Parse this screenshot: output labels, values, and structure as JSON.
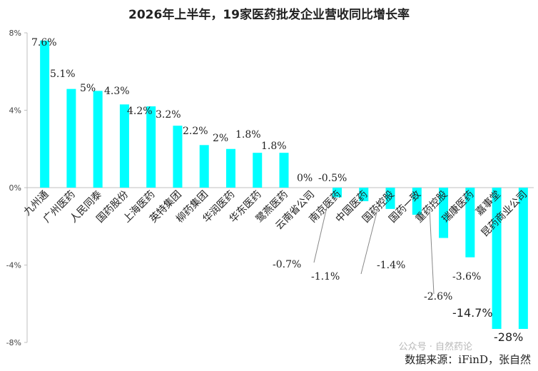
{
  "chart_data": {
    "type": "bar",
    "title": "2026年上半年，19家医药批发企业营收同比增长率",
    "categories": [
      "九州通",
      "广州医药",
      "人民同泰",
      "国药股份",
      "上海医药",
      "英特集团",
      "柳药集团",
      "华润医药",
      "华东医药",
      "鹭燕医药",
      "云南省公司",
      "南京医药",
      "中国医药",
      "国药控股",
      "国药一致",
      "重药控股",
      "瑞康医药",
      "嘉事堂",
      "昆药商业公司"
    ],
    "values": [
      7.6,
      5.1,
      5,
      4.3,
      4.2,
      3.2,
      2.2,
      2,
      1.8,
      1.8,
      0,
      -0.5,
      -0.7,
      -1.1,
      -1.4,
      -2.6,
      -3.6,
      -14.7,
      -28
    ],
    "data_labels": [
      "7.6%",
      "5.1%",
      "5%",
      "4.3%",
      "4.2%",
      "3.2%",
      "2.2%",
      "2%",
      "1.8%",
      "1.8%",
      "0%",
      "-0.5%",
      "-0.7%",
      "-1.1%",
      "-1.4%",
      "-2.6%",
      "-3.6%",
      "-14.7%",
      "-28%"
    ],
    "y_ticks": [
      "8%",
      "4%",
      "0%",
      "-4%",
      "-8%"
    ],
    "ylim": [
      -8,
      8
    ],
    "bar_color": "#00FFFF",
    "grid": false,
    "legend": "none"
  },
  "source": "数据来源：iFinD，张自然",
  "watermark": "公众号 · 自然药论"
}
